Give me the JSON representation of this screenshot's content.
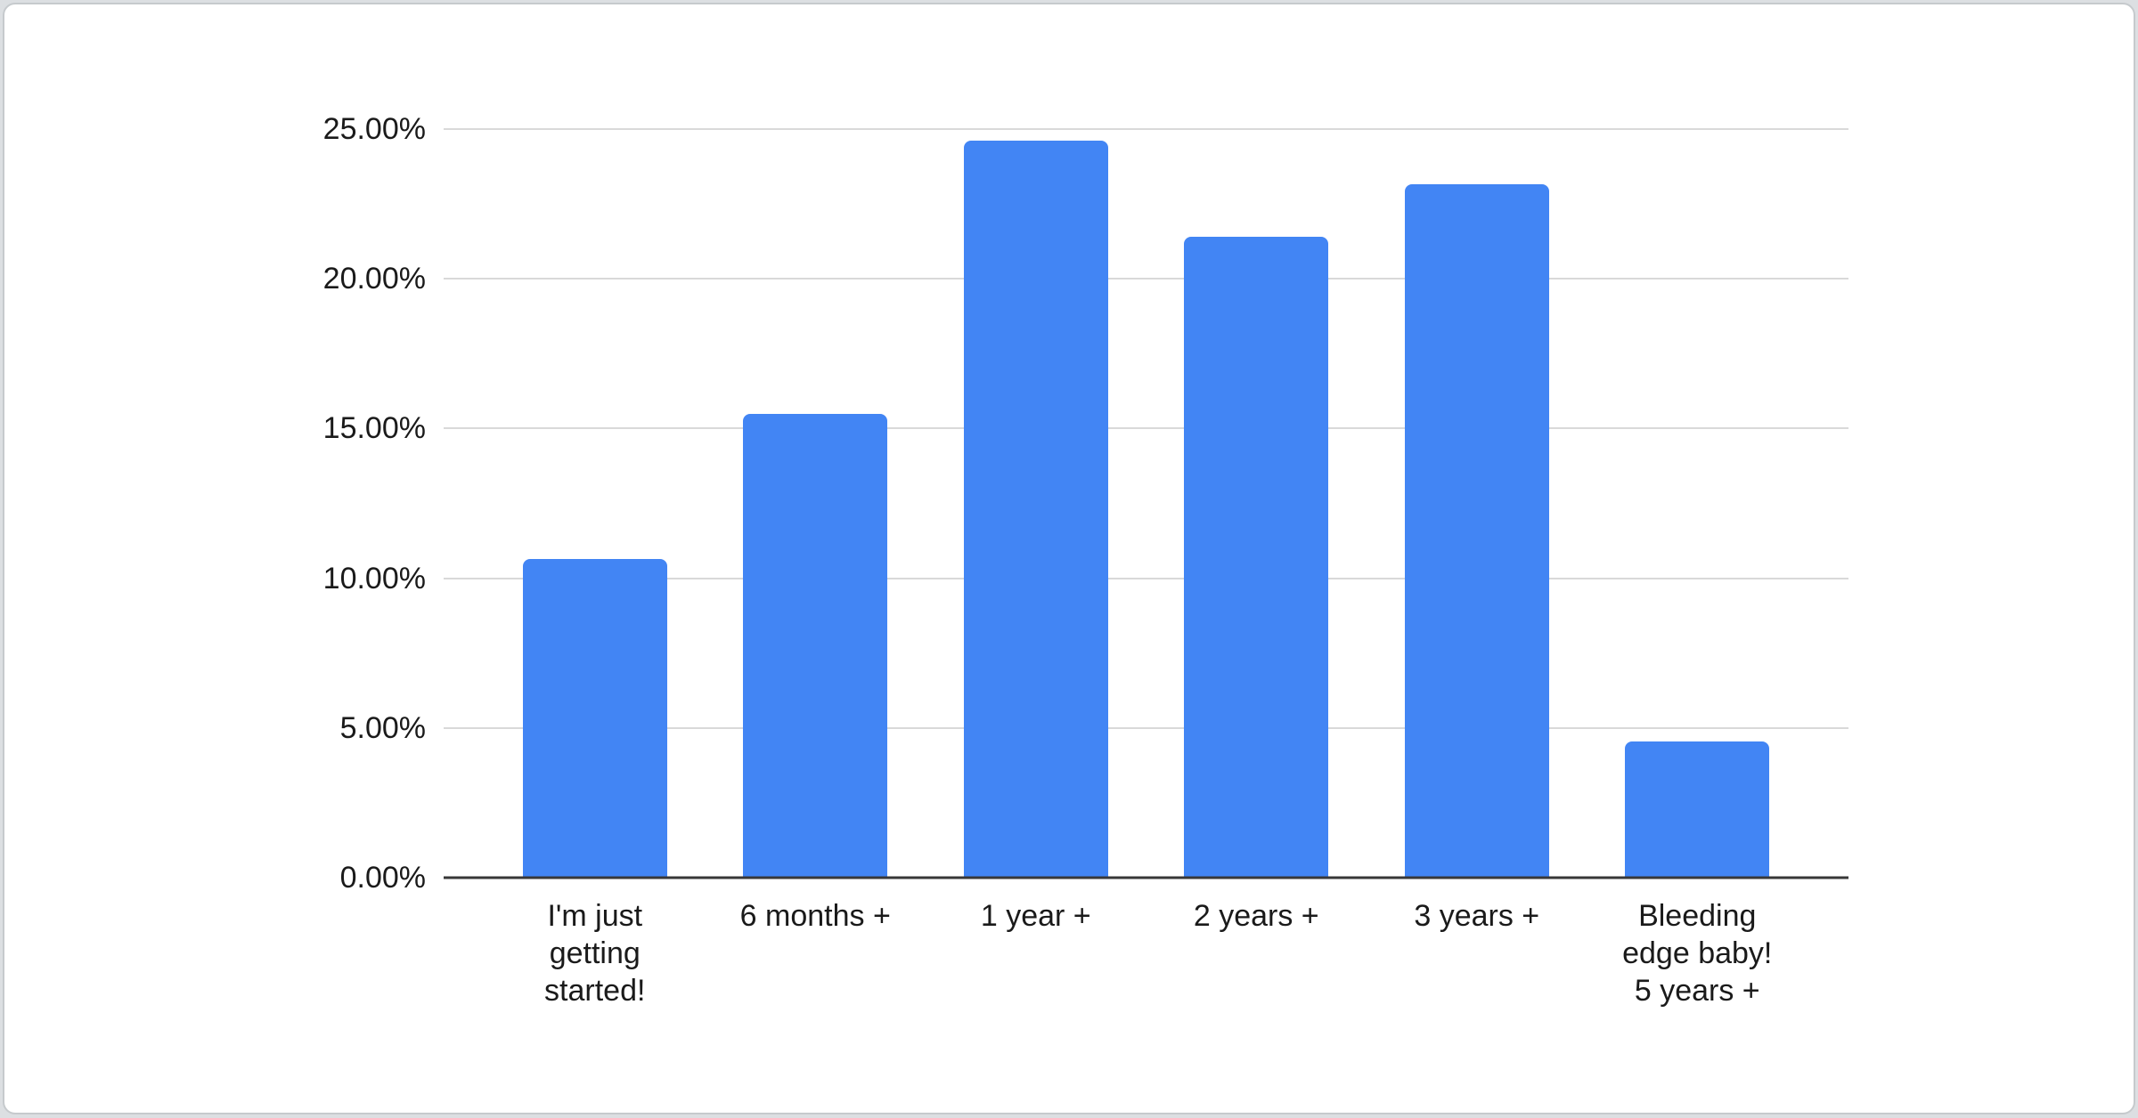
{
  "chart_data": {
    "type": "bar",
    "title": "",
    "xlabel": "",
    "ylabel": "",
    "categories": [
      "I'm just getting started!",
      "6 months +",
      "1 year +",
      "2 years +",
      "3 years +",
      "Bleeding edge baby! 5 years +"
    ],
    "category_display": [
      "I'm just\ngetting\nstarted!",
      "6 months +",
      "1 year +",
      "2 years +",
      "3 years +",
      "Bleeding\nedge baby!\n5 years +"
    ],
    "values": [
      10.65,
      15.5,
      24.6,
      21.4,
      23.15,
      4.55
    ],
    "value_unit": "%",
    "yticks": [
      "0.00%",
      "5.00%",
      "10.00%",
      "15.00%",
      "20.00%",
      "25.00%"
    ],
    "ytick_values": [
      0,
      5,
      10,
      15,
      20,
      25
    ],
    "ylim": [
      0,
      25
    ],
    "grid": true,
    "legend": "none",
    "colors": {
      "bar": "#4285f4",
      "gridline": "#d9d9d9",
      "baseline": "#383838",
      "label": "#1a1a1a",
      "card_background": "#ffffff",
      "page_background": "#dcdfe2",
      "card_border": "#c6cacd"
    }
  }
}
